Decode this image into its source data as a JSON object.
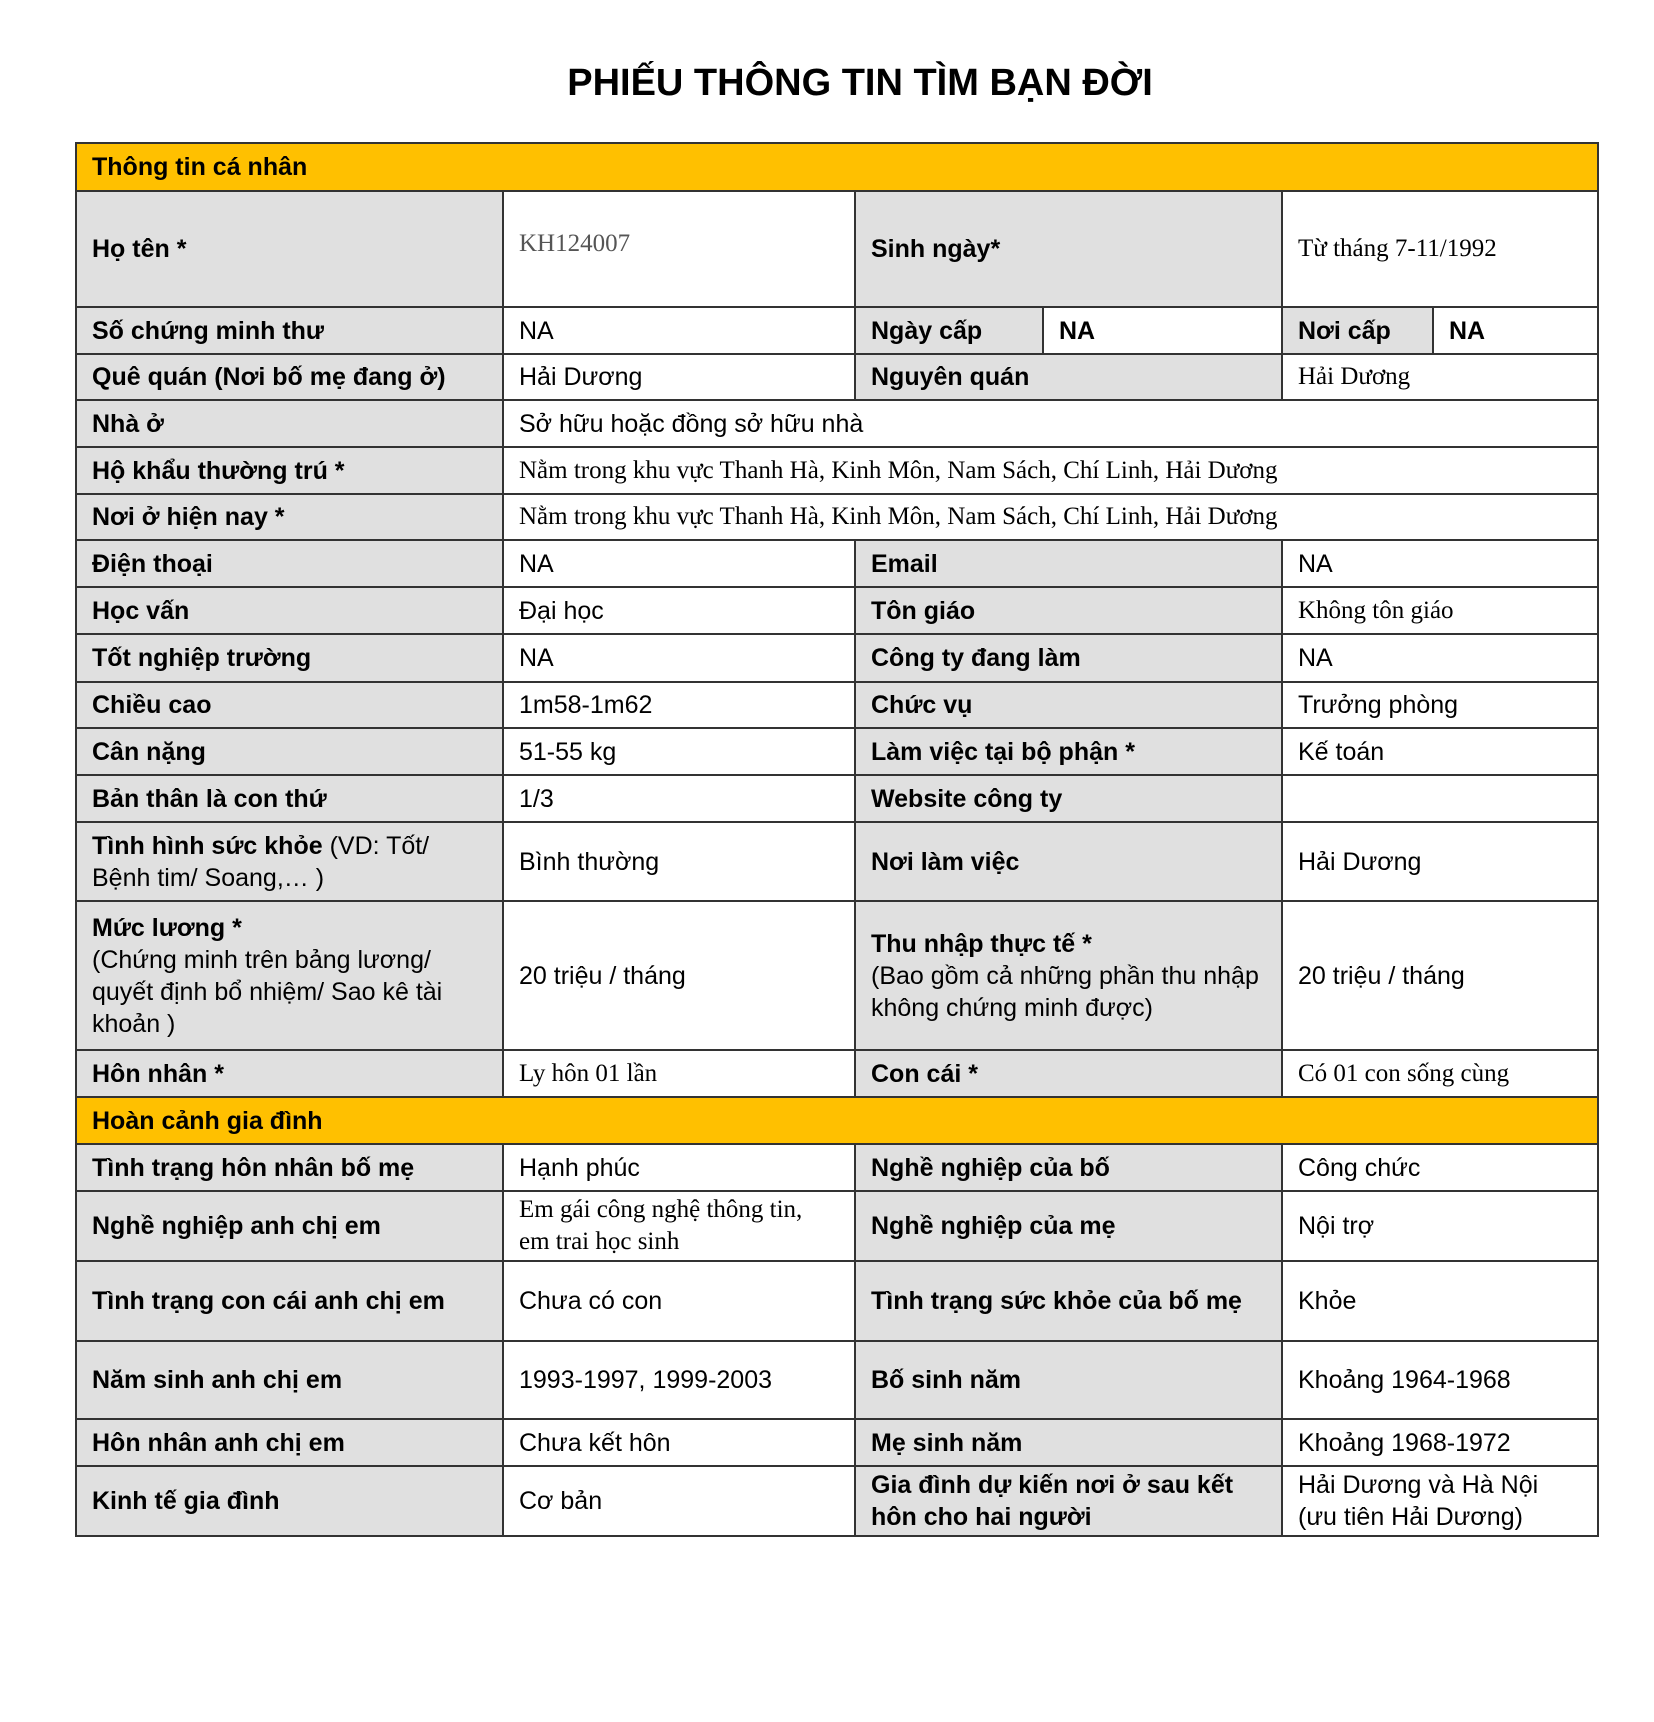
{
  "title": "PHIẾU THÔNG TIN TÌM BẠN ĐỜI",
  "colors": {
    "section": "#ffc000",
    "label": "#e0e0e0",
    "border": "#333333"
  },
  "sections": [
    {
      "heading": "Thông tin cá nhân",
      "rows": [
        [
          {
            "t": "Họ tên *",
            "k": "label"
          },
          {
            "t": "KH124007",
            "k": "value",
            "font": "serif",
            "tone": "muted",
            "align": "top"
          },
          {
            "t": "Sinh ngày*",
            "k": "label"
          },
          {
            "t": "Từ tháng 7-11/1992",
            "k": "value",
            "font": "serif"
          }
        ],
        [
          {
            "t": "Số chứng minh thư",
            "k": "label"
          },
          {
            "t": "NA",
            "k": "value"
          },
          {
            "t": "Ngày cấp",
            "k": "label"
          },
          {
            "t": "NA",
            "k": "value",
            "bold": true
          },
          {
            "t": "Nơi cấp",
            "k": "label"
          },
          {
            "t": "NA",
            "k": "value",
            "bold": true
          }
        ],
        [
          {
            "t": "Quê quán (Nơi bố mẹ đang ở)",
            "k": "label"
          },
          {
            "t": "Hải Dương",
            "k": "value"
          },
          {
            "t": "Nguyên quán",
            "k": "label"
          },
          {
            "t": "Hải Dương",
            "k": "value",
            "font": "serif"
          }
        ],
        [
          {
            "t": "Nhà ở",
            "k": "label"
          },
          {
            "t": "Sở hữu hoặc đồng sở hữu nhà",
            "k": "value"
          }
        ],
        [
          {
            "t": "Hộ khẩu thường trú *",
            "k": "label"
          },
          {
            "t": "Nằm trong khu vực Thanh Hà, Kinh Môn, Nam Sách, Chí Linh, Hải Dương",
            "k": "value",
            "font": "serif"
          }
        ],
        [
          {
            "t": "Nơi ở hiện nay *",
            "k": "label"
          },
          {
            "t": "Nằm trong khu vực Thanh Hà, Kinh Môn, Nam Sách, Chí Linh, Hải Dương",
            "k": "value",
            "font": "serif"
          }
        ],
        [
          {
            "t": "Điện thoại",
            "k": "label"
          },
          {
            "t": "NA",
            "k": "value"
          },
          {
            "t": "Email",
            "k": "label"
          },
          {
            "t": "NA",
            "k": "value"
          }
        ],
        [
          {
            "t": "Học vấn",
            "k": "label"
          },
          {
            "t": "Đại học",
            "k": "value"
          },
          {
            "t": "Tôn giáo",
            "k": "label"
          },
          {
            "t": "Không tôn giáo",
            "k": "value",
            "font": "serif"
          }
        ],
        [
          {
            "t": "Tốt nghiệp trường",
            "k": "label"
          },
          {
            "t": "NA",
            "k": "value"
          },
          {
            "t": "Công ty đang làm",
            "k": "label"
          },
          {
            "t": "NA",
            "k": "value"
          }
        ],
        [
          {
            "t": "Chiều cao",
            "k": "label"
          },
          {
            "t": "1m58-1m62",
            "k": "value"
          },
          {
            "t": "Chức vụ",
            "k": "label"
          },
          {
            "t": "Trưởng phòng",
            "k": "value"
          }
        ],
        [
          {
            "t": "Cân nặng",
            "k": "label"
          },
          {
            "t": "51-55 kg",
            "k": "value"
          },
          {
            "t": "Làm việc tại bộ phận *",
            "k": "label"
          },
          {
            "t": "Kế toán",
            "k": "value"
          }
        ],
        [
          {
            "t": "Bản thân là con thứ",
            "k": "label"
          },
          {
            "t": "1/3",
            "k": "value"
          },
          {
            "t": "Website công ty",
            "k": "label"
          },
          {
            "t": "",
            "k": "value"
          }
        ],
        [
          {
            "t": "Tình hình sức khỏe",
            "note": " (VD: Tốt/ Bệnh tim/ Soang,… )",
            "k": "label"
          },
          {
            "t": "Bình thường",
            "k": "value"
          },
          {
            "t": "Nơi làm việc",
            "k": "label"
          },
          {
            "t": "Hải Dương",
            "k": "value"
          }
        ],
        [
          {
            "t": "Mức lương *",
            "note": "(Chứng minh trên bảng lương/ quyết định bổ nhiệm/ Sao kê tài khoản )",
            "noteBlock": true,
            "k": "label"
          },
          {
            "t": "20 triệu / tháng",
            "k": "value"
          },
          {
            "t": "Thu nhập thực tế *",
            "note": "(Bao gồm cả những phần thu nhập không chứng minh được)",
            "noteBlock": true,
            "k": "label"
          },
          {
            "t": "20 triệu / tháng",
            "k": "value"
          }
        ],
        [
          {
            "t": "Hôn nhân *",
            "k": "label"
          },
          {
            "t": "Ly hôn 01 lần",
            "k": "value",
            "font": "serif"
          },
          {
            "t": "Con cái *",
            "k": "label"
          },
          {
            "t": "Có 01 con sống cùng",
            "k": "value",
            "font": "serif"
          }
        ]
      ]
    },
    {
      "heading": "Hoàn cảnh gia đình",
      "rows": [
        [
          {
            "t": "Tình trạng hôn nhân bố mẹ",
            "k": "label"
          },
          {
            "t": "Hạnh phúc",
            "k": "value"
          },
          {
            "t": "Nghề nghiệp của bố",
            "k": "label"
          },
          {
            "t": "Công chức",
            "k": "value"
          }
        ],
        [
          {
            "t": "Nghề nghiệp anh chị em",
            "k": "label"
          },
          {
            "t": "Em gái công nghệ thông tin, em trai học sinh",
            "k": "value",
            "font": "serif"
          },
          {
            "t": "Nghề nghiệp của mẹ",
            "k": "label"
          },
          {
            "t": "Nội trợ",
            "k": "value"
          }
        ],
        [
          {
            "t": "Tình trạng con cái anh chị em",
            "k": "label"
          },
          {
            "t": "Chưa có con",
            "k": "value"
          },
          {
            "t": "Tình trạng sức khỏe của bố mẹ",
            "k": "label"
          },
          {
            "t": "Khỏe",
            "k": "value"
          }
        ],
        [
          {
            "t": "Năm sinh anh chị em",
            "k": "label"
          },
          {
            "t": "1993-1997, 1999-2003",
            "k": "value"
          },
          {
            "t": "Bố sinh năm",
            "k": "label"
          },
          {
            "t": "Khoảng 1964-1968",
            "k": "value"
          }
        ],
        [
          {
            "t": "Hôn nhân anh chị em",
            "k": "label"
          },
          {
            "t": "Chưa kết hôn",
            "k": "value"
          },
          {
            "t": "Mẹ sinh năm",
            "k": "label"
          },
          {
            "t": "Khoảng 1968-1972",
            "k": "value"
          }
        ],
        [
          {
            "t": "Kinh tế gia đình",
            "k": "label"
          },
          {
            "t": "Cơ bản",
            "k": "value"
          },
          {
            "t": "Gia đình dự kiến nơi ở sau kết hôn cho hai người",
            "k": "label"
          },
          {
            "t": "Hải Dương và Hà Nội (ưu tiên Hải Dương)",
            "k": "value"
          }
        ]
      ]
    }
  ]
}
